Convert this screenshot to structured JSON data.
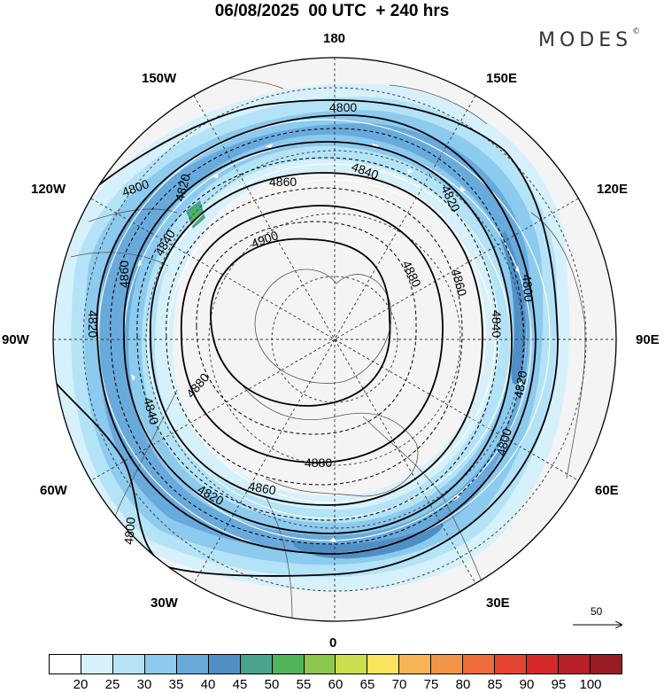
{
  "title": "06/08/2025  00 UTC  + 240 hrs",
  "brand": {
    "name": "MODES",
    "mark": "©"
  },
  "longitude_labels": {
    "top": "180",
    "top_left": "150W",
    "top_right": "150E",
    "upper_left": "120W",
    "upper_right": "120E",
    "left": "90W",
    "right": "90E",
    "lower_left": "60W",
    "lower_right": "60E",
    "bottom_left": "30W",
    "bottom_right": "30E",
    "bottom": "0"
  },
  "contour_labels": {
    "c4800a": "4800",
    "c4800b": "4800",
    "c4800c": "4800",
    "c4800d": "4800",
    "c4800e": "4800",
    "c4820a": "4820",
    "c4820b": "4820",
    "c4820c": "4820",
    "c4820d": "4820",
    "c4820e": "4820",
    "c4840a": "4840",
    "c4840b": "4840",
    "c4840c": "4840",
    "c4840d": "4840",
    "c4860a": "4860",
    "c4860b": "4860",
    "c4860c": "4860",
    "c4860d": "4860",
    "c4880a": "4880",
    "c4880b": "4880",
    "c4880c": "4880",
    "c4900a": "4900"
  },
  "reference_vector": {
    "label": "50"
  },
  "colorbar": {
    "colors": [
      "#ffffff",
      "#d6f1fb",
      "#b4e3f7",
      "#8ccaee",
      "#69aadc",
      "#4f8fc6",
      "#4aa38f",
      "#4fb559",
      "#8cc84d",
      "#cbdf4e",
      "#fae35d",
      "#f7b455",
      "#f39546",
      "#ef6b3a",
      "#e44430",
      "#d42b2a",
      "#b8202a",
      "#991c22"
    ],
    "ticks": [
      "20",
      "25",
      "30",
      "35",
      "40",
      "45",
      "50",
      "55",
      "60",
      "65",
      "70",
      "75",
      "80",
      "85",
      "90",
      "95",
      "100"
    ]
  }
}
